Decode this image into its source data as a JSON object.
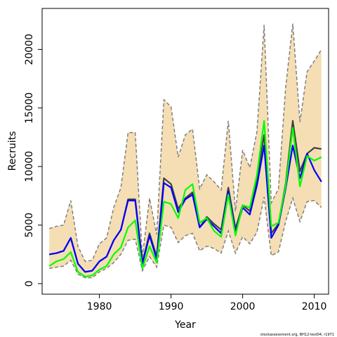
{
  "chart_data": {
    "type": "line",
    "title": "",
    "xlabel": "Year",
    "ylabel": "Recruits",
    "xlim": [
      1972,
      2012
    ],
    "ylim": [
      -900,
      23500
    ],
    "x_ticks": [
      1980,
      1990,
      2000,
      2010
    ],
    "y_ticks": [
      0,
      5000,
      10000,
      15000,
      20000
    ],
    "grid": false,
    "legend": "none",
    "footnote": "stockassessment.org, BH12-test04, r1971",
    "colors": {
      "band_fill": "#f5deb3",
      "band_edge": "#808080",
      "dark_line": "#404040",
      "blue_line": "#0000ff",
      "green_line": "#00ff00"
    },
    "x": [
      1973,
      1974,
      1975,
      1976,
      1977,
      1978,
      1979,
      1980,
      1981,
      1982,
      1983,
      1984,
      1985,
      1986,
      1987,
      1988,
      1989,
      1990,
      1991,
      1992,
      1993,
      1994,
      1995,
      1996,
      1997,
      1998,
      1999,
      2000,
      2001,
      2002,
      2003,
      2004,
      2005,
      2006,
      2007,
      2008,
      2009,
      2010,
      2011
    ],
    "band_upper": [
      4700,
      4900,
      5000,
      7100,
      3200,
      1900,
      2000,
      3400,
      3900,
      6500,
      8200,
      12900,
      12900,
      2300,
      7300,
      4200,
      15700,
      15100,
      10800,
      12700,
      13200,
      8100,
      9300,
      8700,
      8000,
      13900,
      6200,
      11400,
      9900,
      13000,
      22100,
      6900,
      8100,
      16700,
      22200,
      13800,
      18100,
      19000,
      20000
    ],
    "band_lower": [
      1300,
      1400,
      1500,
      2000,
      800,
      500,
      500,
      1000,
      1300,
      1800,
      2500,
      3700,
      3800,
      1100,
      2300,
      1400,
      5000,
      4800,
      3500,
      4100,
      4300,
      2800,
      3200,
      3000,
      2600,
      4500,
      2600,
      4000,
      3400,
      4400,
      7400,
      2400,
      2700,
      5300,
      7300,
      5300,
      7000,
      7100,
      6500
    ],
    "series": [
      {
        "values": [
          2500,
          2600,
          2800,
          3900,
          1700,
          1000,
          1100,
          1900,
          2300,
          3700,
          4600,
          7200,
          7200,
          1800,
          4300,
          2300,
          9000,
          8500,
          6400,
          7300,
          7800,
          4800,
          5700,
          5100,
          4600,
          8200,
          4700,
          6700,
          6200,
          9000,
          12700,
          4300,
          5100,
          8500,
          13900,
          9600,
          11100,
          11600,
          11500
        ]
      },
      {
        "values": [
          2500,
          2600,
          2800,
          3900,
          1700,
          1000,
          1100,
          1900,
          2300,
          3700,
          4600,
          7100,
          7100,
          1700,
          4100,
          2100,
          8600,
          8200,
          6100,
          7200,
          7600,
          4800,
          5500,
          4900,
          4300,
          7900,
          4400,
          6500,
          5900,
          8400,
          11800,
          3900,
          5000,
          8100,
          11800,
          9000,
          11100,
          9700,
          8700
        ]
      },
      {
        "values": [
          1500,
          1900,
          2100,
          2700,
          1000,
          600,
          700,
          1200,
          1500,
          2500,
          3100,
          4800,
          5400,
          1300,
          3200,
          1800,
          7000,
          6800,
          5600,
          8000,
          8500,
          5200,
          5600,
          4500,
          4000,
          7600,
          4100,
          6700,
          6500,
          9300,
          13900,
          4900,
          5200,
          8300,
          13300,
          8300,
          10900,
          10500,
          10800
        ]
      }
    ]
  }
}
